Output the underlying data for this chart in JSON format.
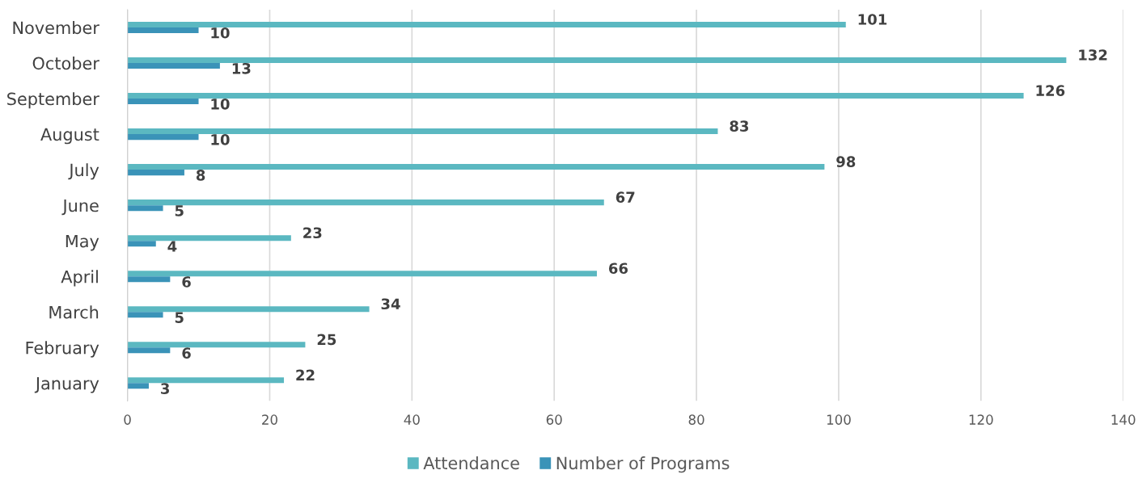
{
  "chart_data": {
    "type": "bar",
    "orientation": "horizontal",
    "categories": [
      "November",
      "October",
      "September",
      "August",
      "July",
      "June",
      "May",
      "April",
      "March",
      "February",
      "January"
    ],
    "series": [
      {
        "name": "Attendance",
        "color": "#5bb8c1",
        "values": [
          101,
          132,
          126,
          83,
          98,
          67,
          23,
          66,
          34,
          25,
          22
        ]
      },
      {
        "name": "Number of Programs",
        "color": "#3a93b8",
        "values": [
          10,
          13,
          10,
          10,
          8,
          5,
          4,
          6,
          5,
          6,
          3
        ]
      }
    ],
    "xlim": [
      0,
      140
    ],
    "xticks": [
      0,
      20,
      40,
      60,
      80,
      100,
      120,
      140
    ],
    "grid": "x",
    "legend": "bottom",
    "data_labels": true
  }
}
